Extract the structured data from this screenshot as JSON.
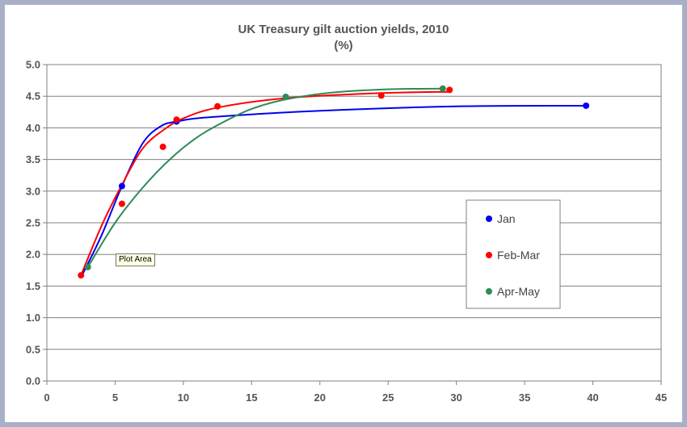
{
  "chart_data": {
    "type": "scatter",
    "title": "UK Treasury gilt auction yields, 2010",
    "subtitle": "(%)",
    "xlabel": "",
    "ylabel": "",
    "xlim": [
      0,
      45
    ],
    "ylim": [
      0.0,
      5.0
    ],
    "x_ticks": [
      "0",
      "5",
      "10",
      "15",
      "20",
      "25",
      "30",
      "35",
      "40",
      "45"
    ],
    "y_ticks": [
      "0.0",
      "0.5",
      "1.0",
      "1.5",
      "2.0",
      "2.5",
      "3.0",
      "3.5",
      "4.0",
      "4.5",
      "5.0"
    ],
    "grid": "horizontal",
    "legend_position": "right",
    "series": [
      {
        "name": "Jan",
        "color": "#0000ee",
        "points": [
          [
            5.5,
            3.08
          ],
          [
            9.5,
            4.1
          ],
          [
            39.5,
            4.35
          ]
        ],
        "trend": [
          [
            2.6,
            1.68
          ],
          [
            4.0,
            2.3
          ],
          [
            5.5,
            3.08
          ],
          [
            7.0,
            3.75
          ],
          [
            8.3,
            4.02
          ],
          [
            9.5,
            4.1
          ],
          [
            12.0,
            4.17
          ],
          [
            20.0,
            4.27
          ],
          [
            30.0,
            4.34
          ],
          [
            39.5,
            4.35
          ]
        ]
      },
      {
        "name": "Feb-Mar",
        "color": "#ff0000",
        "points": [
          [
            2.5,
            1.67
          ],
          [
            5.5,
            2.8
          ],
          [
            8.5,
            3.7
          ],
          [
            9.5,
            4.13
          ],
          [
            12.5,
            4.34
          ],
          [
            24.5,
            4.51
          ],
          [
            29.5,
            4.6
          ]
        ],
        "trend": [
          [
            2.5,
            1.67
          ],
          [
            4.0,
            2.45
          ],
          [
            5.5,
            3.1
          ],
          [
            7.0,
            3.67
          ],
          [
            8.5,
            3.96
          ],
          [
            10.0,
            4.15
          ],
          [
            12.5,
            4.32
          ],
          [
            17.5,
            4.47
          ],
          [
            24.5,
            4.55
          ],
          [
            29.5,
            4.57
          ]
        ]
      },
      {
        "name": "Apr-May",
        "color": "#2e8b57",
        "points": [
          [
            3.0,
            1.8
          ],
          [
            17.5,
            4.49
          ],
          [
            29.0,
            4.62
          ]
        ],
        "trend": [
          [
            3.0,
            1.8
          ],
          [
            5.0,
            2.5
          ],
          [
            7.0,
            3.05
          ],
          [
            9.0,
            3.5
          ],
          [
            11.0,
            3.85
          ],
          [
            13.0,
            4.1
          ],
          [
            15.0,
            4.3
          ],
          [
            17.5,
            4.45
          ],
          [
            21.0,
            4.56
          ],
          [
            25.0,
            4.61
          ],
          [
            29.0,
            4.62
          ]
        ]
      }
    ]
  },
  "tooltip": "Plot Area"
}
